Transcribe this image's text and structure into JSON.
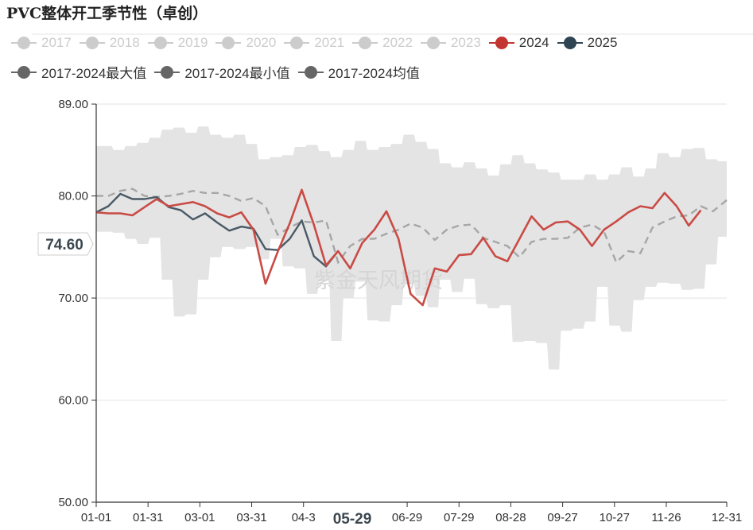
{
  "title": "PVC整体开工季节性（卓创）",
  "watermark": "紫金天风期货",
  "tooltip": {
    "y_value": "74.60",
    "x_value": "05-29"
  },
  "colors": {
    "band": "#e4e4e4",
    "avg": "#a6a6a6",
    "s2024": "#c94b45",
    "s2025": "#4a5a66",
    "legend_gray": "#cccccc",
    "legend_dark": "#666666"
  },
  "legend": [
    {
      "label": "2017",
      "color": "#cccccc",
      "active": false
    },
    {
      "label": "2018",
      "color": "#cccccc",
      "active": false
    },
    {
      "label": "2019",
      "color": "#cccccc",
      "active": false
    },
    {
      "label": "2020",
      "color": "#cccccc",
      "active": false
    },
    {
      "label": "2021",
      "color": "#cccccc",
      "active": false
    },
    {
      "label": "2022",
      "color": "#cccccc",
      "active": false
    },
    {
      "label": "2023",
      "color": "#cccccc",
      "active": false
    },
    {
      "label": "2024",
      "color": "#c23531",
      "active": true
    },
    {
      "label": "2025",
      "color": "#2f4554",
      "active": true
    },
    {
      "label": "2017-2024最大值",
      "color": "#666666",
      "active": true
    },
    {
      "label": "2017-2024最小值",
      "color": "#666666",
      "active": true
    },
    {
      "label": "2017-2024均值",
      "color": "#666666",
      "active": true
    }
  ],
  "chart_data": {
    "type": "line",
    "x_range": [
      1,
      366
    ],
    "ylim": [
      50,
      89
    ],
    "y_ticks": [
      "50.00",
      "60.00",
      "70.00",
      "80.00",
      "89.00"
    ],
    "x_tick_labels": [
      {
        "x": 1,
        "label": "01-01"
      },
      {
        "x": 31,
        "label": "01-31"
      },
      {
        "x": 61,
        "label": "03-01"
      },
      {
        "x": 91,
        "label": "03-31"
      },
      {
        "x": 121,
        "label": "04-3"
      },
      {
        "x": 181,
        "label": "06-29"
      },
      {
        "x": 211,
        "label": "07-29"
      },
      {
        "x": 241,
        "label": "08-28"
      },
      {
        "x": 271,
        "label": "09-27"
      },
      {
        "x": 301,
        "label": "10-27"
      },
      {
        "x": 331,
        "label": "11-26"
      },
      {
        "x": 366,
        "label": "12-31"
      }
    ],
    "series": [
      {
        "name": "2017-2024最大值",
        "style": "band-top",
        "x": [
          1,
          10,
          11,
          17,
          18,
          24,
          25,
          31,
          32,
          38,
          39,
          45,
          46,
          52,
          53,
          59,
          60,
          66,
          67,
          73,
          74,
          80,
          81,
          87,
          88,
          94,
          95,
          101,
          102,
          108,
          109,
          115,
          116,
          122,
          123,
          129,
          130,
          136,
          137,
          143,
          144,
          150,
          151,
          157,
          158,
          164,
          165,
          171,
          172,
          178,
          179,
          185,
          186,
          192,
          193,
          199,
          200,
          206,
          207,
          213,
          214,
          220,
          221,
          227,
          228,
          234,
          235,
          241,
          242,
          248,
          249,
          255,
          256,
          262,
          263,
          269,
          270,
          276,
          277,
          283,
          284,
          290,
          291,
          297,
          298,
          304,
          305,
          311,
          312,
          318,
          319,
          325,
          326,
          332,
          333,
          339,
          340,
          346,
          347,
          353,
          354,
          360,
          361,
          366
        ],
        "values": [
          84.9,
          84.9,
          84.5,
          84.5,
          84.9,
          84.9,
          85.2,
          85.2,
          85.7,
          85.7,
          86.5,
          86.5,
          86.7,
          86.7,
          86.2,
          86.2,
          86.8,
          86.8,
          86.0,
          86.0,
          85.7,
          85.7,
          86.0,
          86.0,
          85.1,
          85.1,
          83.6,
          83.6,
          83.8,
          83.8,
          84.0,
          84.0,
          84.8,
          84.8,
          85.0,
          85.0,
          84.4,
          84.4,
          83.8,
          83.8,
          84.5,
          84.5,
          85.4,
          85.4,
          84.5,
          84.5,
          84.8,
          84.8,
          85.1,
          85.1,
          86.0,
          86.0,
          85.3,
          85.3,
          84.6,
          84.6,
          83.2,
          83.2,
          82.8,
          82.8,
          83.3,
          83.3,
          82.7,
          82.7,
          82.0,
          82.0,
          83.1,
          83.1,
          84.0,
          84.0,
          83.2,
          83.2,
          82.6,
          82.6,
          82.3,
          82.3,
          81.6,
          81.6,
          81.6,
          81.6,
          82.1,
          82.1,
          81.6,
          81.6,
          82.1,
          82.1,
          82.8,
          82.8,
          81.9,
          81.9,
          82.7,
          82.7,
          84.2,
          84.2,
          83.8,
          83.8,
          84.6,
          84.6,
          84.7,
          84.7,
          83.6,
          83.6,
          83.4,
          83.4
        ]
      },
      {
        "name": "2017-2024最小值",
        "style": "band-bottom",
        "x": [
          1,
          10,
          11,
          17,
          18,
          24,
          25,
          31,
          32,
          38,
          39,
          45,
          46,
          52,
          53,
          59,
          60,
          66,
          67,
          73,
          74,
          80,
          81,
          87,
          88,
          94,
          95,
          101,
          102,
          108,
          109,
          115,
          116,
          122,
          123,
          129,
          130,
          136,
          137,
          143,
          144,
          150,
          151,
          157,
          158,
          164,
          165,
          171,
          172,
          178,
          179,
          185,
          186,
          192,
          193,
          199,
          200,
          206,
          207,
          213,
          214,
          220,
          221,
          227,
          228,
          234,
          235,
          241,
          242,
          248,
          249,
          255,
          256,
          262,
          263,
          269,
          270,
          276,
          277,
          283,
          284,
          290,
          291,
          297,
          298,
          304,
          305,
          311,
          312,
          318,
          319,
          325,
          326,
          332,
          333,
          339,
          340,
          346,
          347,
          353,
          354,
          360,
          361,
          366
        ],
        "values": [
          76.5,
          76.5,
          76.4,
          76.4,
          75.8,
          75.8,
          75.3,
          75.3,
          75.9,
          75.9,
          71.8,
          71.8,
          68.2,
          68.2,
          68.4,
          68.4,
          71.8,
          71.8,
          74.0,
          74.0,
          75.0,
          75.0,
          74.8,
          74.8,
          75.0,
          75.0,
          73.8,
          73.8,
          75.8,
          75.8,
          73.1,
          73.1,
          72.9,
          72.9,
          70.4,
          70.4,
          71.7,
          71.7,
          65.8,
          65.8,
          70.0,
          70.0,
          71.6,
          71.6,
          67.8,
          67.8,
          67.7,
          67.7,
          69.3,
          69.3,
          71.4,
          71.4,
          70.2,
          70.2,
          69.1,
          69.1,
          71.8,
          71.8,
          70.6,
          70.6,
          71.9,
          71.9,
          69.4,
          69.4,
          69.0,
          69.0,
          69.3,
          69.3,
          65.7,
          65.7,
          65.8,
          65.8,
          65.6,
          65.6,
          63.0,
          63.0,
          66.8,
          66.8,
          67.0,
          67.0,
          67.7,
          67.7,
          71.1,
          71.1,
          67.3,
          67.3,
          66.7,
          66.7,
          69.8,
          69.8,
          71.1,
          71.1,
          71.5,
          71.5,
          71.4,
          71.4,
          70.8,
          70.8,
          70.9,
          70.9,
          73.3,
          73.3,
          76.0,
          76.0
        ]
      },
      {
        "name": "2017-2024均值",
        "style": "dashed",
        "x": [
          1,
          8,
          15,
          22,
          29,
          36,
          43,
          50,
          57,
          64,
          71,
          78,
          85,
          92,
          99,
          106,
          113,
          120,
          127,
          134,
          141,
          148,
          155,
          162,
          169,
          176,
          183,
          190,
          197,
          204,
          211,
          218,
          225,
          232,
          239,
          246,
          253,
          260,
          267,
          274,
          281,
          288,
          295,
          302,
          309,
          316,
          323,
          330,
          337,
          344,
          351,
          358,
          366
        ],
        "values": [
          80.0,
          80.0,
          80.5,
          80.7,
          80.0,
          79.9,
          80.0,
          80.2,
          80.5,
          80.3,
          80.3,
          80.0,
          79.5,
          79.8,
          79.0,
          76.2,
          76.9,
          77.5,
          77.4,
          77.6,
          73.5,
          75.1,
          75.8,
          75.8,
          76.3,
          76.7,
          77.3,
          76.9,
          75.7,
          76.7,
          77.1,
          77.2,
          75.9,
          75.5,
          75.1,
          74.0,
          75.5,
          75.8,
          75.8,
          75.9,
          76.9,
          77.2,
          76.5,
          73.5,
          74.6,
          74.4,
          76.9,
          77.5,
          78.0,
          78.1,
          79.0,
          78.5,
          79.6
        ]
      },
      {
        "name": "2024",
        "style": "solid",
        "color": "#c94b45",
        "x": [
          1,
          8,
          15,
          22,
          29,
          36,
          43,
          50,
          57,
          64,
          71,
          78,
          85,
          92,
          99,
          106,
          113,
          120,
          127,
          134,
          141,
          148,
          155,
          162,
          169,
          176,
          183,
          190,
          197,
          204,
          211,
          218,
          225,
          232,
          239,
          246,
          253,
          260,
          267,
          274,
          281,
          288,
          295,
          302,
          309,
          316,
          323,
          330,
          337,
          344,
          351,
          358,
          366
        ],
        "values": [
          78.4,
          78.3,
          78.3,
          78.1,
          78.9,
          79.7,
          79.0,
          79.2,
          79.4,
          79.0,
          78.3,
          77.9,
          78.4,
          76.7,
          71.4,
          74.5,
          77.3,
          80.6,
          77.2,
          73.2,
          74.6,
          72.9,
          75.4,
          76.7,
          78.5,
          75.8,
          70.4,
          69.3,
          72.9,
          72.6,
          74.2,
          74.3,
          75.9,
          74.1,
          73.6,
          75.8,
          78.0,
          76.7,
          77.4,
          77.5,
          76.7,
          75.1,
          76.7,
          77.5,
          78.4,
          79.0,
          78.8,
          80.3,
          79.0,
          77.1,
          78.6,
          null,
          null
        ]
      },
      {
        "name": "2025",
        "style": "solid",
        "color": "#4a5a66",
        "x": [
          1,
          8,
          15,
          22,
          29,
          36,
          43,
          50,
          57,
          64,
          71,
          78,
          85,
          92,
          99,
          106,
          113,
          120,
          127,
          134,
          141
        ],
        "values": [
          78.4,
          79.0,
          80.2,
          79.7,
          79.7,
          79.9,
          78.9,
          78.6,
          77.7,
          78.3,
          77.4,
          76.6,
          77.0,
          76.8,
          74.8,
          74.7,
          75.8,
          77.6,
          74.1,
          73.1,
          74.6
        ]
      }
    ]
  }
}
